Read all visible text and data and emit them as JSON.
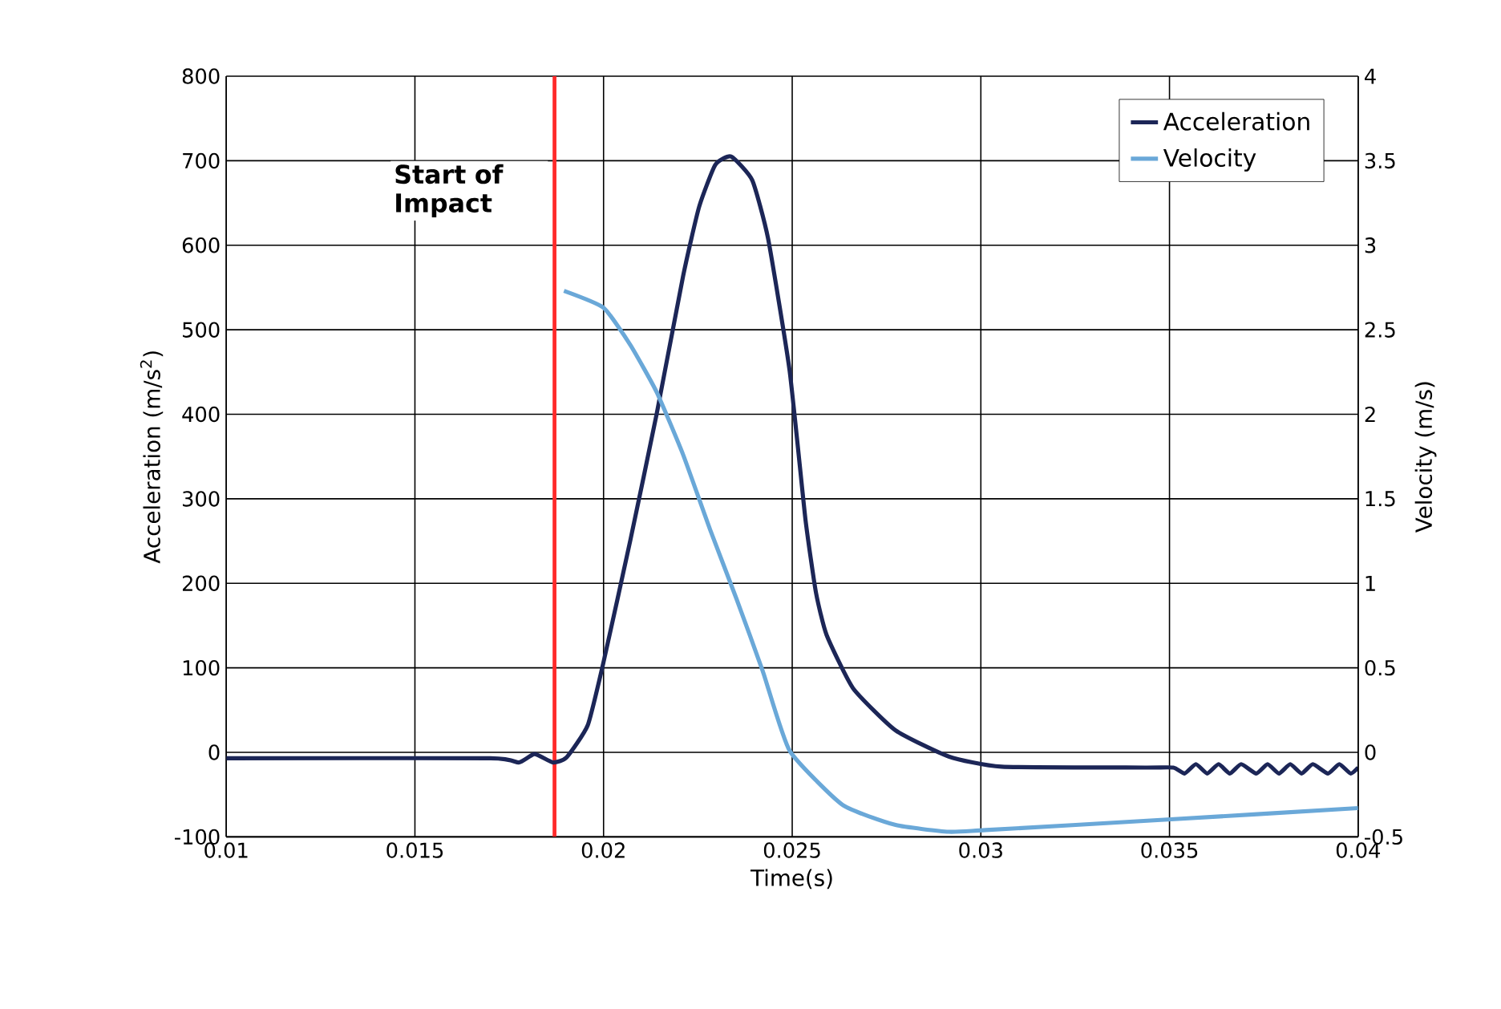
{
  "chart_data": {
    "type": "line",
    "xlabel": "Time(s)",
    "ylabel": "Acceleration (m/s$^{2}$)",
    "y2label": "Velocity (m/s)",
    "xlim": [
      0.01,
      0.04
    ],
    "xticks": [
      0.01,
      0.015,
      0.02,
      0.025,
      0.03,
      0.035,
      0.04
    ],
    "ylim": [
      -100,
      800
    ],
    "yticks": [
      -100,
      0,
      100,
      200,
      300,
      400,
      500,
      600,
      700,
      800
    ],
    "y2lim": [
      -0.5,
      4
    ],
    "y2ticks": [
      -0.5,
      0,
      0.5,
      1,
      1.5,
      2,
      2.5,
      3,
      3.5,
      4
    ],
    "grid": true,
    "legend": "top right",
    "marker": "none",
    "line_style": "solid",
    "ref_lines": [
      {
        "axis": "x",
        "value": 0.0187,
        "label": "Start of Impact",
        "color": "#ff2a2a"
      }
    ],
    "series": [
      {
        "name": "Acceleration",
        "color": "#1c2657",
        "x": [
          0.01,
          0.017,
          0.01775,
          0.01817,
          0.01866,
          0.01902,
          0.01958,
          0.02,
          0.02071,
          0.02141,
          0.02211,
          0.02253,
          0.02296,
          0.02338,
          0.02394,
          0.02436,
          0.02493,
          0.02535,
          0.02563,
          0.02591,
          0.02661,
          0.02774,
          0.02915,
          0.03055,
          0.03435,
          0.0351,
          0.0354,
          0.0357,
          0.036,
          0.0363,
          0.0366,
          0.0369,
          0.0373,
          0.0376,
          0.0379,
          0.0382,
          0.0385,
          0.0388,
          0.0392,
          0.0395,
          0.0398,
          0.04
        ],
        "values": [
          -7,
          -7,
          -12,
          -2,
          -12,
          -6,
          32,
          107,
          251,
          401,
          564,
          645,
          695,
          705,
          677,
          608,
          452,
          276,
          189,
          139,
          76,
          26,
          -5,
          -17,
          -18,
          -18,
          -25,
          -14,
          -25,
          -14,
          -25,
          -14,
          -25,
          -14,
          -25,
          -14,
          -25,
          -14,
          -25,
          -14,
          -25,
          -18
        ]
      },
      {
        "name": "Velocity",
        "color": "#6aa8d8",
        "axis": "y2",
        "x": [
          0.01895,
          0.02,
          0.02071,
          0.02141,
          0.02211,
          0.02282,
          0.02352,
          0.02422,
          0.02493,
          0.02633,
          0.02774,
          0.02915,
          0.03013,
          0.03477,
          0.04
        ],
        "values": [
          2.73,
          2.63,
          2.41,
          2.13,
          1.76,
          1.32,
          0.91,
          0.48,
          0.01,
          -0.31,
          -0.43,
          -0.47,
          -0.46,
          -0.4,
          -0.33
        ]
      }
    ]
  }
}
